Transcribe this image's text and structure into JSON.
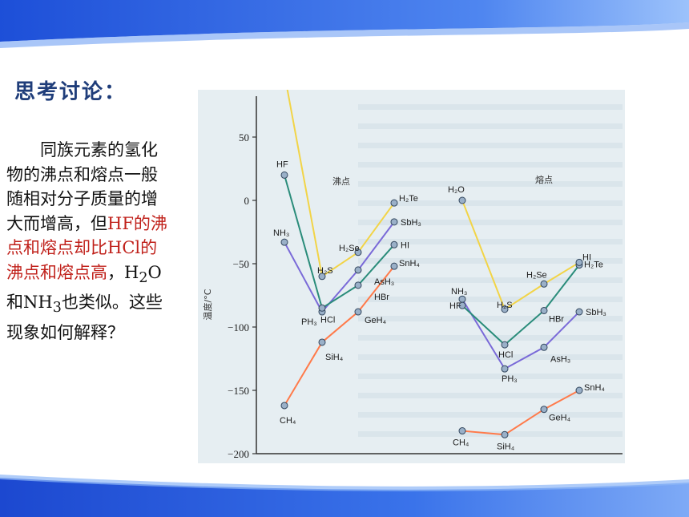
{
  "slide": {
    "heading": "思考讨论：",
    "paragraph": {
      "part1": "同族元素的氢化物的沸点和熔点一般随相对分子质量的增大而增高，但",
      "part2_red": "HF的沸点和熔点却比HCl的沸点和熔点高",
      "part3": "，H",
      "sub1": "2",
      "part4": "O和NH",
      "sub2": "3",
      "part5": "也类似。这些现象如何解释？"
    }
  },
  "chart_data": {
    "type": "line",
    "ylabel": "温度/°C",
    "yticks": [
      "50",
      "0",
      "−50",
      "−100",
      "−150",
      "−200"
    ],
    "ylim": [
      -200,
      80
    ],
    "panel_titles": [
      "沸点",
      "熔点"
    ],
    "colors": {
      "row2": "#f2d447",
      "row3": "#2a8c7a",
      "row4": "#7a6ad8",
      "row5": "#ff8a65"
    },
    "boiling": [
      {
        "name": "row2",
        "labels": [
          "CH4",
          "NH3",
          "HF",
          "H2O"
        ],
        "values": [
          -162,
          -33,
          20,
          100
        ]
      },
      {
        "name": "row3",
        "labels": [
          "SiH4",
          "PH3",
          "HCl",
          "H2S"
        ],
        "values": [
          -112,
          -88,
          -85,
          -60
        ]
      },
      {
        "name": "row4",
        "labels": [
          "GeH4",
          "AsH3",
          "HBr",
          "H2Se"
        ],
        "values": [
          -88,
          -55,
          -67,
          -41
        ]
      },
      {
        "name": "row5",
        "labels": [
          "SnH4",
          "SbH3",
          "HI",
          "H2Te"
        ],
        "values": [
          -52,
          -17,
          -35,
          -2
        ]
      }
    ],
    "melting": [
      {
        "name": "row2",
        "labels": [
          "CH4",
          "NH3",
          "HF",
          "H2O"
        ],
        "values": [
          -182,
          -78,
          -83,
          0
        ]
      },
      {
        "name": "row3",
        "labels": [
          "SiH4",
          "PH3",
          "HCl",
          "H2S"
        ],
        "values": [
          -185,
          -133,
          -114,
          -86
        ]
      },
      {
        "name": "row4",
        "labels": [
          "GeH4",
          "AsH3",
          "HBr",
          "H2Se"
        ],
        "values": [
          -165,
          -116,
          -87,
          -66
        ]
      },
      {
        "name": "row5",
        "labels": [
          "SnH4",
          "SbH3",
          "HI",
          "H2Te"
        ],
        "values": [
          -150,
          -88,
          -51,
          -49
        ]
      }
    ],
    "point_labels": {
      "H2O": "H₂O",
      "HF": "HF",
      "NH3": "NH₃",
      "H2Se": "H₂Se",
      "H2S": "H₂S",
      "PH3": "PH₃",
      "HCl": "HCl",
      "SiH4": "SiH₄",
      "CH4": "CH₄",
      "GeH4": "GeH₄",
      "H2Te": "H₂Te",
      "SbH3": "SbH₃",
      "HI": "HI",
      "SnH4": "SnH₄",
      "AsH3": "AsH₃",
      "HBr": "HBr"
    }
  }
}
